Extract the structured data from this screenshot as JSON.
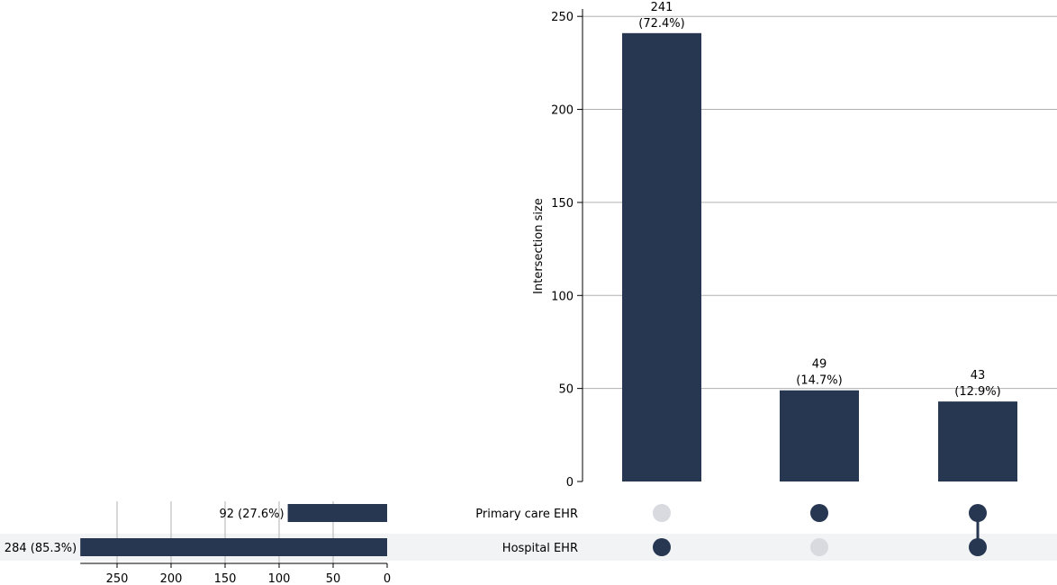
{
  "chart_data": {
    "type": "bar",
    "chart_kind": "upset",
    "colors": {
      "bar": "#273651",
      "dot_active": "#273651",
      "dot_inactive": "#d8dadf",
      "shade": "#f2f3f5",
      "grid": "#b0b0b0"
    },
    "intersections": {
      "ylabel": "Intersection size",
      "ylim": [
        0,
        253
      ],
      "yticks": [
        0,
        50,
        100,
        150,
        200,
        250
      ],
      "bars": [
        {
          "value": 241,
          "count_label": "241",
          "pct_label": "(72.4%)",
          "members": [
            "Hospital EHR"
          ]
        },
        {
          "value": 49,
          "count_label": "49",
          "pct_label": "(14.7%)",
          "members": [
            "Primary care EHR"
          ]
        },
        {
          "value": 43,
          "count_label": "43",
          "pct_label": "(12.9%)",
          "members": [
            "Primary care EHR",
            "Hospital EHR"
          ]
        }
      ]
    },
    "sets": {
      "xlim": [
        0,
        284
      ],
      "xticks": [
        250,
        200,
        150,
        100,
        50,
        0
      ],
      "items": [
        {
          "name": "Primary care EHR",
          "value": 92,
          "label": "92 (27.6%)"
        },
        {
          "name": "Hospital EHR",
          "value": 284,
          "label": "284 (85.3%)"
        }
      ]
    }
  }
}
